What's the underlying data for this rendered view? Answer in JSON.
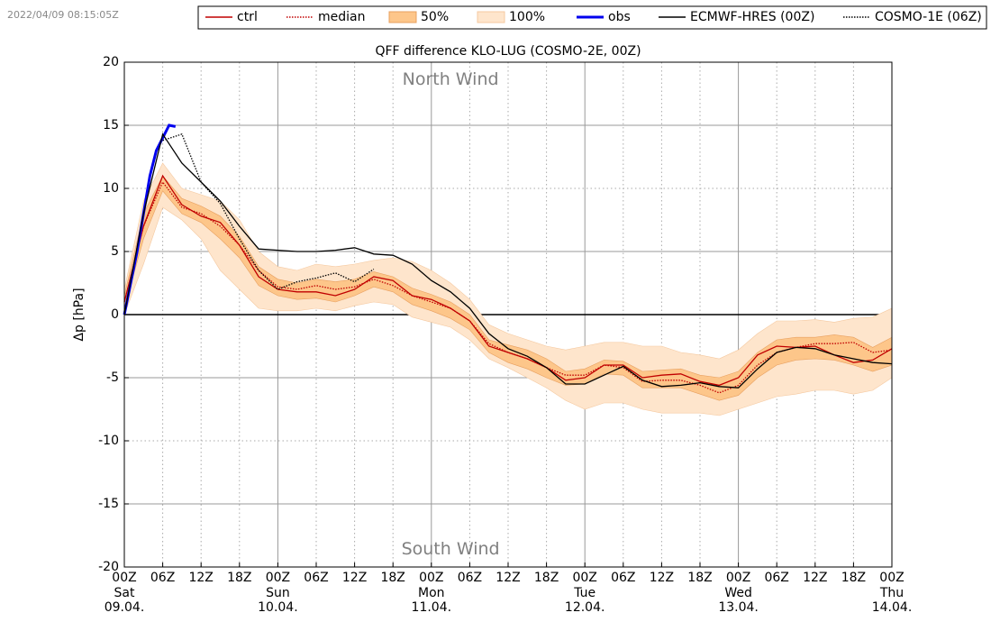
{
  "timestamp": "2022/04/09 08:15:05Z",
  "chart_data": {
    "type": "line",
    "title": "QFF difference KLO-LUG (COSMO-2E, 00Z)",
    "ylabel": "Δp [hPa]",
    "annotations": [
      {
        "text": "North Wind",
        "x": 51,
        "y": 18.6
      },
      {
        "text": "South Wind",
        "x": 51,
        "y": -18.6
      }
    ],
    "x": [
      0,
      3,
      6,
      9,
      12,
      15,
      18,
      21,
      24,
      27,
      30,
      33,
      36,
      39,
      42,
      45,
      48,
      51,
      54,
      57,
      60,
      63,
      66,
      69,
      72,
      75,
      78,
      81,
      84,
      87,
      90,
      93,
      96,
      99,
      102,
      105,
      108,
      111,
      114,
      117,
      120
    ],
    "xlim": [
      0,
      120
    ],
    "xticks": [
      {
        "value": 0,
        "label": "00Z"
      },
      {
        "value": 6,
        "label": "06Z"
      },
      {
        "value": 12,
        "label": "12Z"
      },
      {
        "value": 18,
        "label": "18Z"
      },
      {
        "value": 24,
        "label": "00Z"
      },
      {
        "value": 30,
        "label": "06Z"
      },
      {
        "value": 36,
        "label": "12Z"
      },
      {
        "value": 42,
        "label": "18Z"
      },
      {
        "value": 48,
        "label": "00Z"
      },
      {
        "value": 54,
        "label": "06Z"
      },
      {
        "value": 60,
        "label": "12Z"
      },
      {
        "value": 66,
        "label": "18Z"
      },
      {
        "value": 72,
        "label": "00Z"
      },
      {
        "value": 78,
        "label": "06Z"
      },
      {
        "value": 84,
        "label": "12Z"
      },
      {
        "value": 90,
        "label": "18Z"
      },
      {
        "value": 96,
        "label": "00Z"
      },
      {
        "value": 102,
        "label": "06Z"
      },
      {
        "value": 108,
        "label": "12Z"
      },
      {
        "value": 114,
        "label": "18Z"
      },
      {
        "value": 120,
        "label": "00Z"
      }
    ],
    "xtick_days": [
      {
        "value": 0,
        "label": "Sat",
        "date": "09.04."
      },
      {
        "value": 24,
        "label": "Sun",
        "date": "10.04."
      },
      {
        "value": 48,
        "label": "Mon",
        "date": "11.04."
      },
      {
        "value": 72,
        "label": "Tue",
        "date": "12.04."
      },
      {
        "value": 96,
        "label": "Wed",
        "date": "13.04."
      },
      {
        "value": 120,
        "label": "Thu",
        "date": "14.04."
      }
    ],
    "ylim": [
      -20,
      20
    ],
    "yticks": [
      -20,
      -15,
      -10,
      -5,
      0,
      5,
      10,
      15,
      20
    ],
    "grid": true,
    "series": [
      {
        "name": "ctrl",
        "color": "#c00000",
        "style": "solid",
        "values": [
          1,
          7,
          11,
          8.7,
          7.8,
          7.3,
          5.5,
          3,
          2,
          1.8,
          1.8,
          1.5,
          2,
          3,
          2.7,
          1.5,
          1.2,
          0.5,
          -0.5,
          -2.5,
          -3,
          -3.5,
          -4.2,
          -5.2,
          -5,
          -4,
          -4,
          -5,
          -4.8,
          -4.7,
          -5.3,
          -5.6,
          -5,
          -3.2,
          -2.5,
          -2.6,
          -2.5,
          -3.2,
          -3.8,
          -3.6,
          -2.7
        ]
      },
      {
        "name": "median",
        "color": "#c00000",
        "style": "dotted",
        "values": [
          1,
          7,
          10.5,
          8.5,
          8,
          7,
          5.5,
          3.5,
          2.2,
          2,
          2.3,
          2,
          2.2,
          2.8,
          2.3,
          1.5,
          1,
          0.5,
          -0.5,
          -2.3,
          -3,
          -3.5,
          -4.2,
          -4.8,
          -4.8,
          -4,
          -4.2,
          -5.3,
          -5.2,
          -5.2,
          -5.6,
          -6.2,
          -5.6,
          -4,
          -3,
          -2.6,
          -2.3,
          -2.3,
          -2.2,
          -3,
          -2.8
        ]
      },
      {
        "name": "50%",
        "color": "#fdc68a",
        "style": "band",
        "low": [
          0.5,
          6,
          9.8,
          8,
          7.3,
          6,
          4.5,
          2.3,
          1.5,
          1.2,
          1.3,
          1,
          1.5,
          2.2,
          1.8,
          0.8,
          0.3,
          -0.3,
          -1.2,
          -3,
          -3.8,
          -4.3,
          -5,
          -5.6,
          -5.5,
          -4.7,
          -4.8,
          -5.8,
          -5.8,
          -5.8,
          -6.3,
          -6.8,
          -6.4,
          -5,
          -4,
          -3.6,
          -3.5,
          -3.6,
          -4,
          -4.5,
          -4
        ],
        "high": [
          1.5,
          8,
          11,
          9.2,
          8.6,
          7.8,
          6.2,
          3.8,
          2.8,
          2.5,
          2.8,
          2.6,
          2.8,
          3.4,
          3,
          2.1,
          1.6,
          1,
          0,
          -2,
          -2.4,
          -2.8,
          -3.5,
          -4.5,
          -4.3,
          -3.6,
          -3.7,
          -4.5,
          -4.4,
          -4.3,
          -4.8,
          -5,
          -4.5,
          -3,
          -2,
          -1.8,
          -1.8,
          -1.6,
          -1.8,
          -2.6,
          -1.8
        ]
      },
      {
        "name": "100%",
        "color": "#fee5cc",
        "style": "band",
        "low": [
          0,
          4,
          8.5,
          7.5,
          6,
          3.5,
          2,
          0.5,
          0.3,
          0.3,
          0.5,
          0.3,
          0.7,
          1,
          0.8,
          -0.2,
          -0.6,
          -1,
          -2,
          -3.5,
          -4.2,
          -5,
          -5.8,
          -6.8,
          -7.5,
          -7,
          -7,
          -7.5,
          -7.8,
          -7.8,
          -7.8,
          -8,
          -7.5,
          -7,
          -6.5,
          -6.3,
          -6,
          -6,
          -6.3,
          -6,
          -5
        ],
        "high": [
          2,
          9,
          12,
          10,
          9.5,
          9,
          7.5,
          5,
          3.8,
          3.5,
          4,
          3.8,
          4,
          4.3,
          4.5,
          4.2,
          3.5,
          2.5,
          1.2,
          -0.8,
          -1.5,
          -2,
          -2.5,
          -2.8,
          -2.5,
          -2.2,
          -2.2,
          -2.5,
          -2.5,
          -3,
          -3.2,
          -3.5,
          -2.8,
          -1.5,
          -0.5,
          -0.5,
          -0.4,
          -0.6,
          -0.3,
          -0.2,
          0.5
        ]
      },
      {
        "name": "obs",
        "color": "#0000ee",
        "style": "thick",
        "x": [
          0,
          1,
          2,
          3,
          4,
          5,
          6,
          7,
          8
        ],
        "values": [
          0,
          2.5,
          5,
          8,
          11,
          13,
          14,
          15,
          14.9
        ]
      },
      {
        "name": "ECMWF-HRES (00Z)",
        "color": "#000000",
        "style": "solid",
        "values": [
          0,
          8,
          14.3,
          12,
          10.5,
          9,
          7,
          5.2,
          5.1,
          5,
          5,
          5.1,
          5.3,
          4.8,
          4.7,
          4,
          2.7,
          1.8,
          0.5,
          -1.5,
          -2.7,
          -3.3,
          -4.2,
          -5.5,
          -5.5,
          -4.8,
          -4.1,
          -5.2,
          -5.7,
          -5.6,
          -5.4,
          -5.7,
          -5.8,
          -4.3,
          -3,
          -2.6,
          -2.7,
          -3.2,
          -3.5,
          -3.8,
          -3.9
        ]
      },
      {
        "name": "COSMO-1E (06Z)",
        "color": "#000000",
        "style": "dotted",
        "x": [
          6,
          9,
          12,
          15,
          18,
          21,
          24,
          27,
          30,
          33,
          36,
          39
        ],
        "values": [
          13.8,
          14.3,
          10.5,
          8.8,
          6,
          3.5,
          2,
          2.6,
          2.9,
          3.3,
          2.6,
          3.6
        ]
      }
    ]
  }
}
